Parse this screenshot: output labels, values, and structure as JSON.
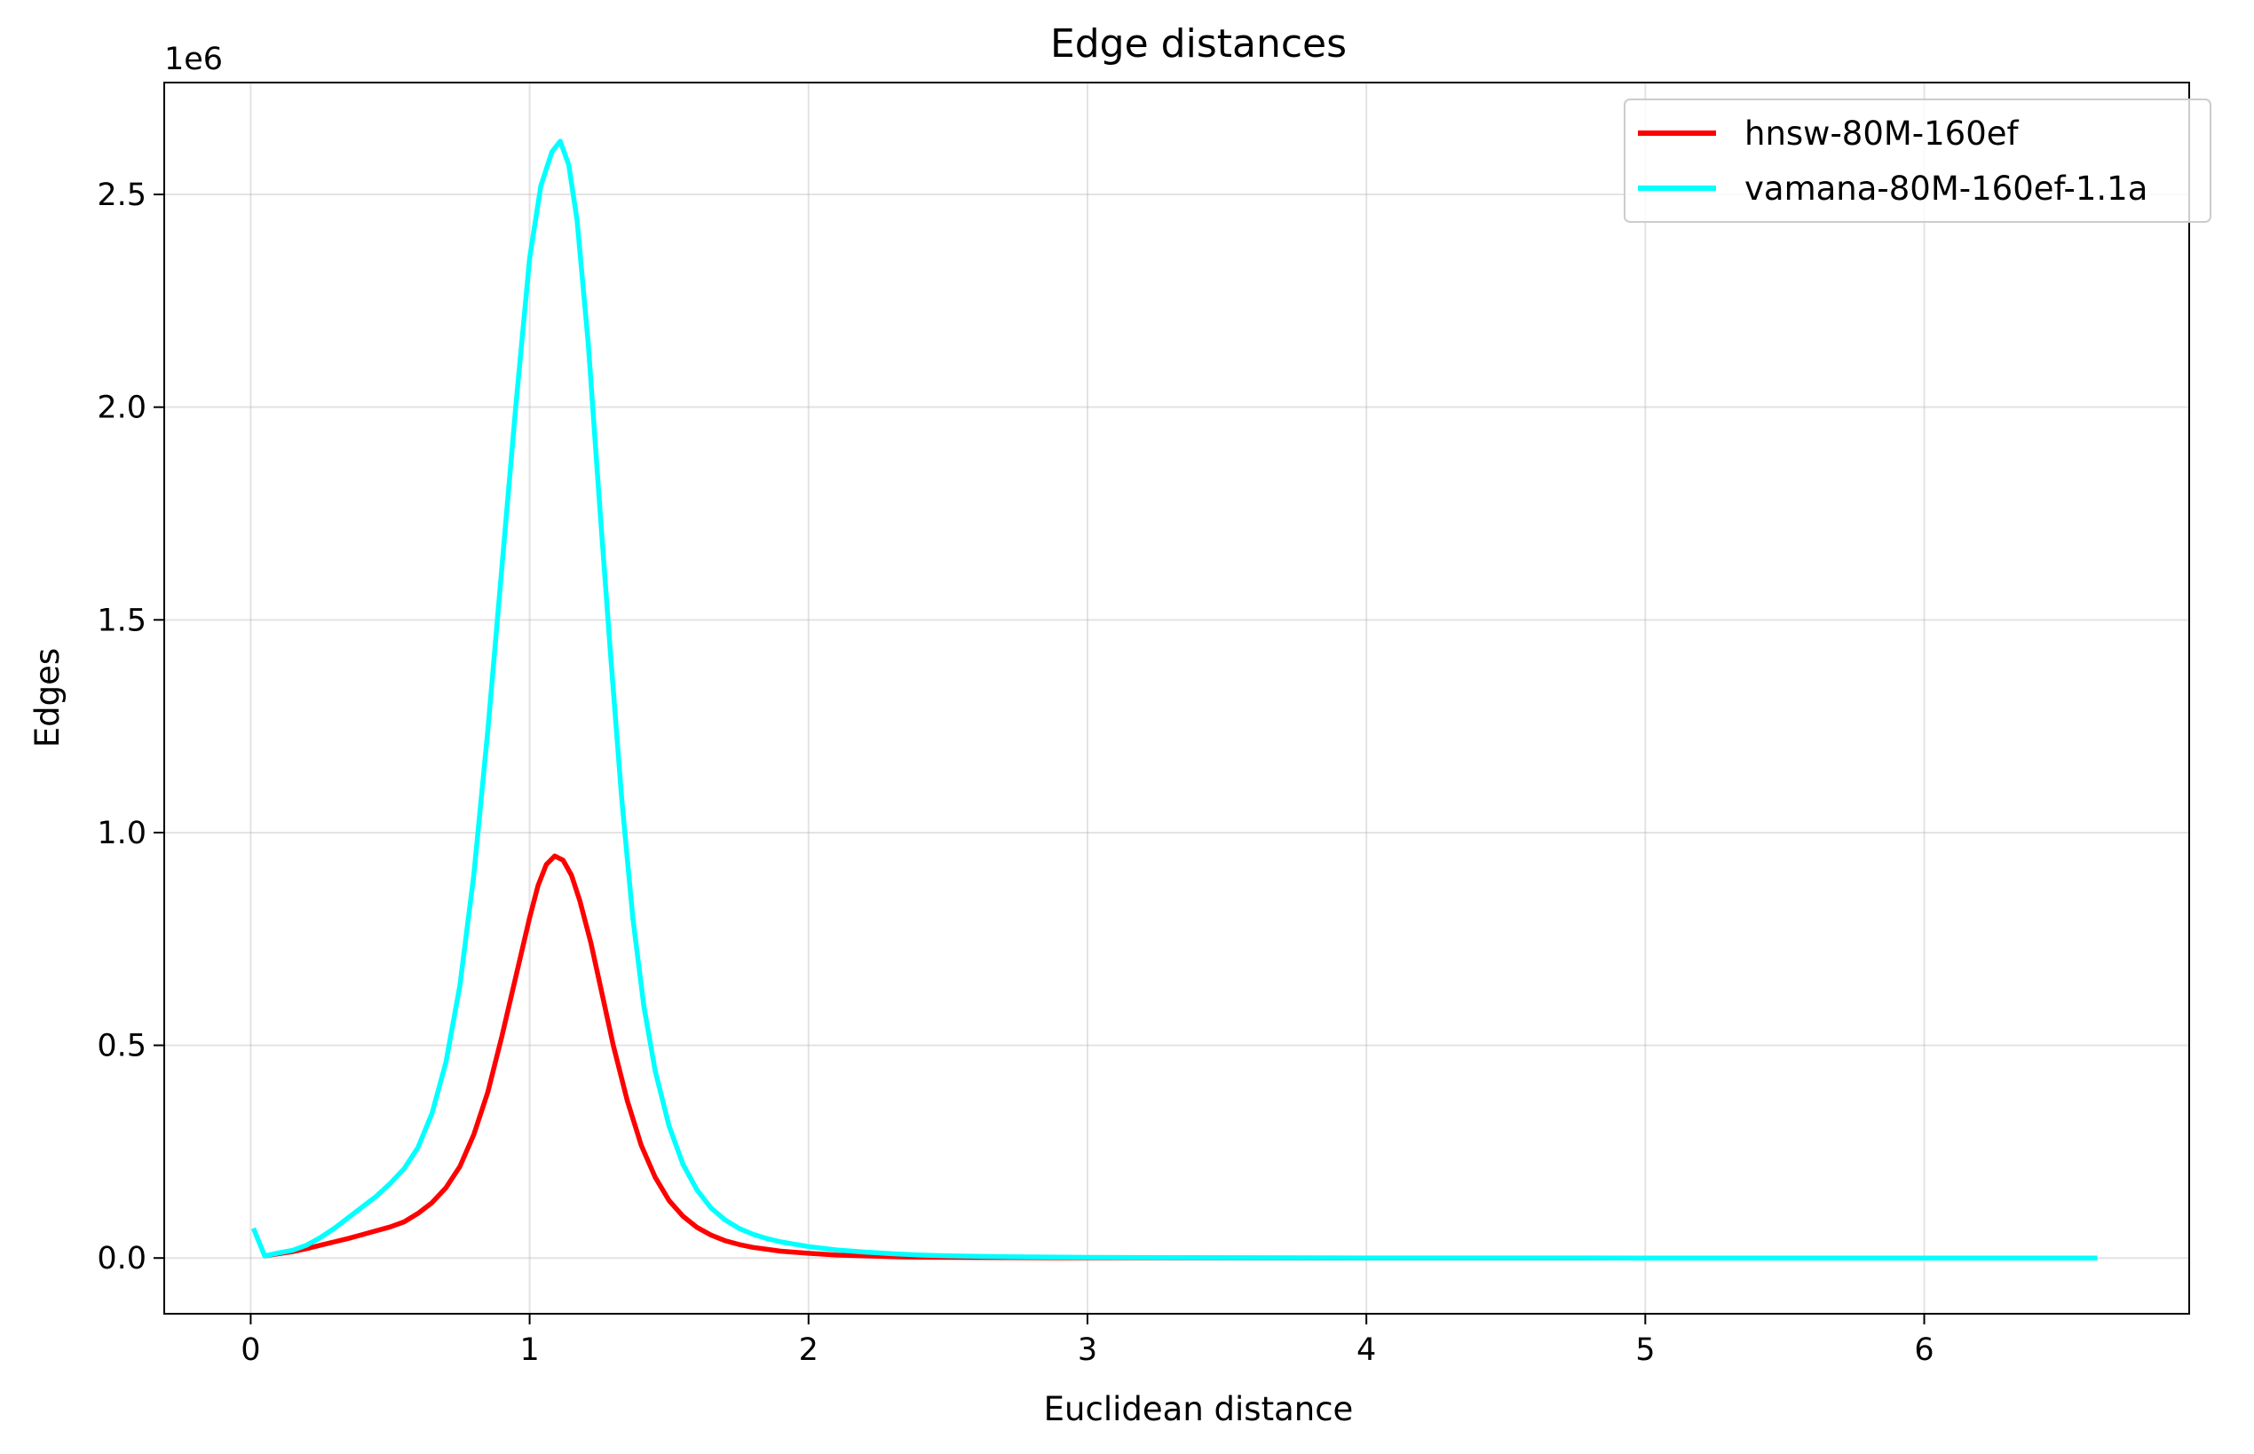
{
  "chart_data": {
    "type": "line",
    "title": "Edge distances",
    "xlabel": "Euclidean distance",
    "ylabel": "Edges",
    "y_offset_label": "1e6",
    "xlim": [
      -0.31,
      6.95
    ],
    "ylim": [
      -0.131,
      2.763
    ],
    "x_ticks": [
      0,
      1,
      2,
      3,
      4,
      5,
      6
    ],
    "y_ticks": [
      0.0,
      0.5,
      1.0,
      1.5,
      2.0,
      2.5
    ],
    "x_tick_labels": [
      "0",
      "1",
      "2",
      "3",
      "4",
      "5",
      "6"
    ],
    "y_tick_labels": [
      "0.0",
      "0.5",
      "1.0",
      "1.5",
      "2.0",
      "2.5"
    ],
    "grid": true,
    "legend_position": "top-right",
    "series": [
      {
        "name": "hnsw-80M-160ef",
        "color": "#ff0000",
        "x": [
          0.05,
          0.1,
          0.15,
          0.2,
          0.25,
          0.3,
          0.35,
          0.4,
          0.45,
          0.5,
          0.55,
          0.6,
          0.65,
          0.7,
          0.75,
          0.8,
          0.85,
          0.9,
          0.95,
          1.0,
          1.03,
          1.06,
          1.09,
          1.12,
          1.15,
          1.18,
          1.22,
          1.26,
          1.3,
          1.35,
          1.4,
          1.45,
          1.5,
          1.55,
          1.6,
          1.65,
          1.7,
          1.75,
          1.8,
          1.9,
          2.0,
          2.1,
          2.2,
          2.3,
          2.4,
          2.5,
          2.7,
          3.0,
          3.5,
          4.0,
          5.0,
          6.0,
          6.62
        ],
        "y": [
          0.005,
          0.01,
          0.015,
          0.022,
          0.03,
          0.038,
          0.046,
          0.055,
          0.064,
          0.073,
          0.085,
          0.105,
          0.13,
          0.165,
          0.215,
          0.29,
          0.39,
          0.52,
          0.66,
          0.8,
          0.875,
          0.925,
          0.945,
          0.935,
          0.9,
          0.84,
          0.74,
          0.62,
          0.5,
          0.37,
          0.265,
          0.19,
          0.135,
          0.098,
          0.072,
          0.054,
          0.041,
          0.032,
          0.025,
          0.016,
          0.011,
          0.007,
          0.005,
          0.003,
          0.002,
          0.0015,
          0.001,
          0.0005,
          0.0002,
          0.0001,
          0.0,
          0.0,
          0.0
        ]
      },
      {
        "name": "vamana-80M-160ef-1.1a",
        "color": "#00ffff",
        "x": [
          0.01,
          0.05,
          0.1,
          0.15,
          0.2,
          0.25,
          0.3,
          0.35,
          0.4,
          0.45,
          0.5,
          0.55,
          0.6,
          0.65,
          0.7,
          0.75,
          0.8,
          0.85,
          0.9,
          0.95,
          1.0,
          1.04,
          1.08,
          1.11,
          1.14,
          1.17,
          1.21,
          1.25,
          1.29,
          1.33,
          1.37,
          1.41,
          1.45,
          1.5,
          1.55,
          1.6,
          1.65,
          1.7,
          1.75,
          1.8,
          1.85,
          1.9,
          2.0,
          2.1,
          2.2,
          2.3,
          2.4,
          2.5,
          2.7,
          3.0,
          3.5,
          4.0,
          5.0,
          6.0,
          6.62
        ],
        "y": [
          0.07,
          0.005,
          0.012,
          0.018,
          0.03,
          0.048,
          0.07,
          0.095,
          0.12,
          0.145,
          0.175,
          0.21,
          0.26,
          0.34,
          0.46,
          0.64,
          0.9,
          1.24,
          1.62,
          2.0,
          2.35,
          2.52,
          2.6,
          2.625,
          2.57,
          2.44,
          2.15,
          1.78,
          1.42,
          1.08,
          0.8,
          0.59,
          0.44,
          0.31,
          0.22,
          0.16,
          0.118,
          0.09,
          0.07,
          0.056,
          0.046,
          0.038,
          0.027,
          0.019,
          0.014,
          0.01,
          0.007,
          0.005,
          0.003,
          0.0015,
          0.0005,
          0.0002,
          0.0,
          0.0,
          0.0
        ]
      }
    ]
  }
}
